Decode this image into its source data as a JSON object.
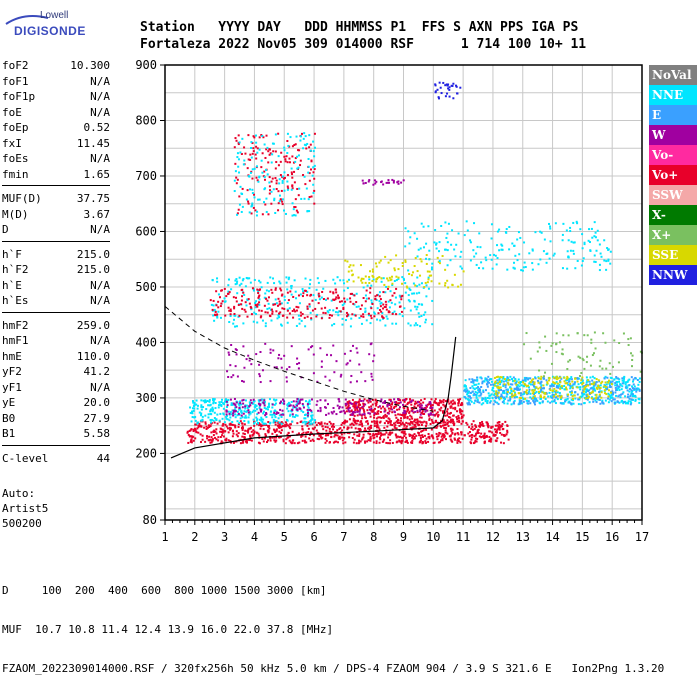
{
  "logo": {
    "line1": "Lowell",
    "line2": "DIGISONDE"
  },
  "header": {
    "line1": "Station   YYYY DAY   DDD HHMMSS P1  FFS S AXN PPS IGA PS",
    "line2": "Fortaleza 2022 Nov05 309 014000 RSF      1 714 100 10+ 11"
  },
  "params": [
    {
      "k": "foF2",
      "v": "10.300"
    },
    {
      "k": "foF1",
      "v": "N/A"
    },
    {
      "k": "foF1p",
      "v": "N/A"
    },
    {
      "k": "foE",
      "v": "N/A"
    },
    {
      "k": "foEp",
      "v": "0.52"
    },
    {
      "k": "fxI",
      "v": "11.45"
    },
    {
      "k": "foEs",
      "v": "N/A"
    },
    {
      "k": "fmin",
      "v": "1.65"
    },
    {
      "k": "MUF(D)",
      "v": "37.75"
    },
    {
      "k": "M(D)",
      "v": "3.67"
    },
    {
      "k": "D",
      "v": "N/A"
    },
    {
      "k": "h`F",
      "v": "215.0"
    },
    {
      "k": "h`F2",
      "v": "215.0"
    },
    {
      "k": "h`E",
      "v": "N/A"
    },
    {
      "k": "h`Es",
      "v": "N/A"
    },
    {
      "k": "hmF2",
      "v": "259.0"
    },
    {
      "k": "hmF1",
      "v": "N/A"
    },
    {
      "k": "hmE",
      "v": "110.0"
    },
    {
      "k": "yF2",
      "v": "41.2"
    },
    {
      "k": "yF1",
      "v": "N/A"
    },
    {
      "k": "yE",
      "v": "20.0"
    },
    {
      "k": "B0",
      "v": "27.9"
    },
    {
      "k": "B1",
      "v": "5.58"
    },
    {
      "k": "C-level",
      "v": "44"
    }
  ],
  "auto": {
    "line1": "Auto:",
    "line2": "Artist5",
    "line3": "500200"
  },
  "legend": [
    {
      "label": "NoVal",
      "color": "#808080"
    },
    {
      "label": "NNE",
      "color": "#00e5ff"
    },
    {
      "label": "E",
      "color": "#3aa0ff"
    },
    {
      "label": "W",
      "color": "#a000a0"
    },
    {
      "label": "Vo-",
      "color": "#ff2aa0"
    },
    {
      "label": "Vo+",
      "color": "#e8002a"
    },
    {
      "label": "SSW",
      "color": "#f4a8a8"
    },
    {
      "label": "X-",
      "color": "#007a00"
    },
    {
      "label": "X+",
      "color": "#7ac060"
    },
    {
      "label": "SSE",
      "color": "#d8d800"
    },
    {
      "label": "NNW",
      "color": "#2020e0"
    }
  ],
  "footer": {
    "line1": "D     100  200  400  600  800 1000 1500 3000 [km]",
    "line2": "MUF  10.7 10.8 11.4 12.4 13.9 16.0 22.0 37.8 [MHz]",
    "line3": "FZAOM_2022309014000.RSF / 320fx256h 50 kHz 5.0 km / DPS-4 FZAOM 904 / 3.9 S 321.6 E   Ion2Png 1.3.20"
  },
  "chart_data": {
    "type": "scatter",
    "x_range": [
      1,
      17
    ],
    "y_range": [
      80,
      900
    ],
    "x_ticks": [
      "1",
      "2",
      "3",
      "4",
      "5",
      "6",
      "7",
      "8",
      "9",
      "10",
      "11",
      "12",
      "13",
      "14",
      "15",
      "16",
      "17"
    ],
    "y_ticks": [
      {
        "value": 80,
        "label": "80"
      },
      {
        "value": 200,
        "label": "200"
      },
      {
        "value": 300,
        "label": "300"
      },
      {
        "value": 400,
        "label": "400"
      },
      {
        "value": 500,
        "label": "500"
      },
      {
        "value": 600,
        "label": "600"
      },
      {
        "value": 700,
        "label": "700"
      },
      {
        "value": 800,
        "label": "800"
      },
      {
        "value": 900,
        "label": "900"
      }
    ],
    "grid": true,
    "profile_solid": [
      [
        1.2,
        192
      ],
      [
        2,
        210
      ],
      [
        4,
        228
      ],
      [
        6,
        235
      ],
      [
        8,
        240
      ],
      [
        10,
        246
      ],
      [
        10.3,
        259
      ],
      [
        10.5,
        300
      ],
      [
        10.6,
        340
      ],
      [
        10.75,
        410
      ]
    ],
    "profile_dashed": [
      [
        1,
        465
      ],
      [
        2,
        420
      ],
      [
        3,
        390
      ],
      [
        4,
        368
      ],
      [
        5,
        348
      ],
      [
        6,
        330
      ],
      [
        7,
        312
      ],
      [
        8,
        297
      ],
      [
        9,
        285
      ],
      [
        10,
        276
      ]
    ],
    "echo_regions": [
      {
        "direction": "Vo+",
        "x": [
          1.7,
          12.5
        ],
        "y": [
          220,
          260
        ],
        "density": 900
      },
      {
        "direction": "Vo+",
        "x": [
          7,
          11
        ],
        "y": [
          255,
          300
        ],
        "density": 400
      },
      {
        "direction": "NNE",
        "x": [
          1.8,
          6
        ],
        "y": [
          255,
          300
        ],
        "density": 320
      },
      {
        "direction": "NNE",
        "x": [
          11,
          16.9
        ],
        "y": [
          290,
          340
        ],
        "density": 500
      },
      {
        "direction": "E",
        "x": [
          11,
          16.9
        ],
        "y": [
          290,
          340
        ],
        "density": 300
      },
      {
        "direction": "SSE",
        "x": [
          12,
          16
        ],
        "y": [
          300,
          340
        ],
        "density": 180
      },
      {
        "direction": "W",
        "x": [
          3,
          10
        ],
        "y": [
          270,
          300
        ],
        "density": 220
      },
      {
        "direction": "NNE",
        "x": [
          2.5,
          10
        ],
        "y": [
          430,
          520
        ],
        "density": 300
      },
      {
        "direction": "Vo+",
        "x": [
          2.5,
          9
        ],
        "y": [
          445,
          500
        ],
        "density": 240
      },
      {
        "direction": "SSE",
        "x": [
          7,
          11
        ],
        "y": [
          500,
          560
        ],
        "density": 100
      },
      {
        "direction": "NNE",
        "x": [
          9,
          16
        ],
        "y": [
          530,
          620
        ],
        "density": 200
      },
      {
        "direction": "Vo+",
        "x": [
          3.3,
          6
        ],
        "y": [
          630,
          780
        ],
        "density": 160
      },
      {
        "direction": "NNE",
        "x": [
          3.3,
          6
        ],
        "y": [
          630,
          780
        ],
        "density": 140
      },
      {
        "direction": "NNW",
        "x": [
          10,
          11
        ],
        "y": [
          840,
          870
        ],
        "density": 30
      },
      {
        "direction": "W",
        "x": [
          7.5,
          9
        ],
        "y": [
          685,
          695
        ],
        "density": 25
      },
      {
        "direction": "X+",
        "x": [
          13,
          17
        ],
        "y": [
          340,
          420
        ],
        "density": 70
      },
      {
        "direction": "W",
        "x": [
          3,
          8
        ],
        "y": [
          330,
          400
        ],
        "density": 90
      }
    ]
  }
}
